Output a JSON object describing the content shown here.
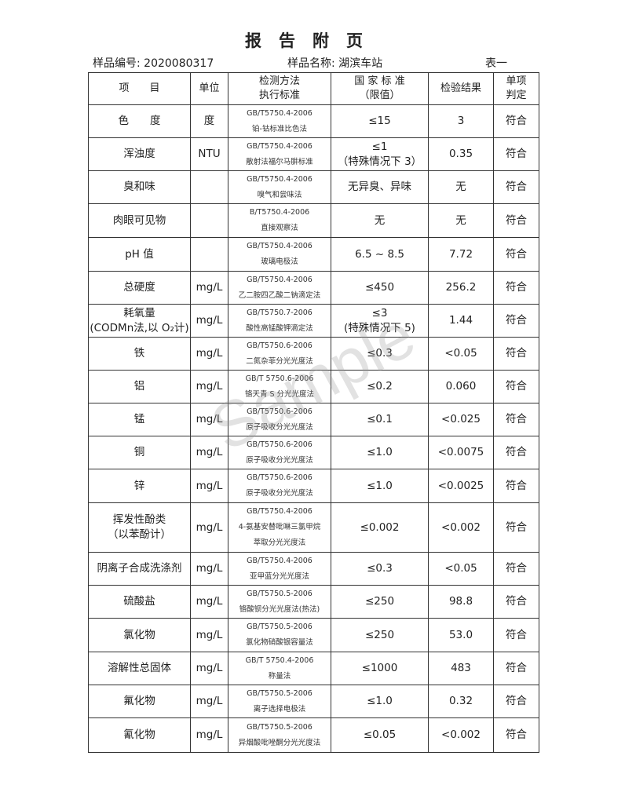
{
  "title": "报告附页",
  "sample_no": "样品编号: 2020080317",
  "sample_name": "样品名称: 湖滨车站",
  "table_no": "表一",
  "watermark": "Sample",
  "headers": [
    "项　　目",
    "单位",
    "检测方法\n执行标准",
    "国 家 标 准\n（限值）",
    "检验结果",
    "单项\n判定"
  ],
  "rows": [
    {
      "item": "色　　度",
      "unit": "度",
      "std": "GB/T5750.4-2006",
      "method": "铂-钴标准比色法",
      "limit": "≤15",
      "result": "3",
      "verdict": "符合"
    },
    {
      "item": "浑浊度",
      "unit": "NTU",
      "std": "GB/T5750.4-2006",
      "method": "散射法福尔马肼标准",
      "limit": "≤1\n（特殊情况下 3）",
      "result": "0.35",
      "verdict": "符合"
    },
    {
      "item": "臭和味",
      "unit": "",
      "std": "GB/T5750.4-2006",
      "method": "嗅气和尝味法",
      "limit": "无异臭、异味",
      "result": "无",
      "verdict": "符合"
    },
    {
      "item": "肉眼可见物",
      "unit": "",
      "std": "B/T5750.4-2006",
      "method": "直接观察法",
      "limit": "无",
      "result": "无",
      "verdict": "符合"
    },
    {
      "item": "pH 值",
      "unit": "",
      "std": "GB/T5750.4-2006",
      "method": "玻璃电极法",
      "limit": "6.5 ~ 8.5",
      "result": "7.72",
      "verdict": "符合"
    },
    {
      "item": "总硬度",
      "unit": "mg/L",
      "std": "GB/T5750.4-2006",
      "method": "乙二胺四乙酸二钠滴定法",
      "limit": "≤450",
      "result": "256.2",
      "verdict": "符合"
    },
    {
      "item": "耗氧量\n(CODMn法,以 O₂计)",
      "unit": "mg/L",
      "std": "GB/T5750.7-2006",
      "method": "酸性高锰酸钾滴定法",
      "limit": "≤3\n(特殊情况下 5)",
      "result": "1.44",
      "verdict": "符合"
    },
    {
      "item": "铁",
      "unit": "mg/L",
      "std": "GB/T5750.6-2006",
      "method": "二氮杂菲分光光度法",
      "limit": "≤0.3",
      "result": "<0.05",
      "verdict": "符合"
    },
    {
      "item": "铝",
      "unit": "mg/L",
      "std": "GB/T 5750.6-2006",
      "method": "铬天青 S 分光光度法",
      "limit": "≤0.2",
      "result": "0.060",
      "verdict": "符合"
    },
    {
      "item": "锰",
      "unit": "mg/L",
      "std": "GB/T5750.6-2006",
      "method": "原子吸收分光光度法",
      "limit": "≤0.1",
      "result": "<0.025",
      "verdict": "符合"
    },
    {
      "item": "铜",
      "unit": "mg/L",
      "std": "GB/T5750.6-2006",
      "method": "原子吸收分光光度法",
      "limit": "≤1.0",
      "result": "<0.0075",
      "verdict": "符合"
    },
    {
      "item": "锌",
      "unit": "mg/L",
      "std": "GB/T5750.6-2006",
      "method": "原子吸收分光光度法",
      "limit": "≤1.0",
      "result": "<0.0025",
      "verdict": "符合"
    },
    {
      "item": "挥发性酚类\n（以苯酚计）",
      "unit": "mg/L",
      "std": "GB/T5750.4-2006",
      "method": "4-氨基安替吡啉三氯甲烷\n萃取分光光度法",
      "limit": "≤0.002",
      "result": "<0.002",
      "verdict": "符合"
    },
    {
      "item": "阴离子合成洗涤剂",
      "unit": "mg/L",
      "std": "GB/T5750.4-2006",
      "method": "亚甲蓝分光光度法",
      "limit": "≤0.3",
      "result": "<0.05",
      "verdict": "符合"
    },
    {
      "item": "硫酸盐",
      "unit": "mg/L",
      "std": "GB/T5750.5-2006",
      "method": "铬酸钡分光光度法(热法)",
      "limit": "≤250",
      "result": "98.8",
      "verdict": "符合"
    },
    {
      "item": "氯化物",
      "unit": "mg/L",
      "std": "GB/T5750.5-2006",
      "method": "氯化物硝酸银容量法",
      "limit": "≤250",
      "result": "53.0",
      "verdict": "符合"
    },
    {
      "item": "溶解性总固体",
      "unit": "mg/L",
      "std": "GB/T 5750.4-2006",
      "method": "称量法",
      "limit": "≤1000",
      "result": "483",
      "verdict": "符合"
    },
    {
      "item": "氟化物",
      "unit": "mg/L",
      "std": "GB/T5750.5-2006",
      "method": "离子选择电极法",
      "limit": "≤1.0",
      "result": "0.32",
      "verdict": "符合"
    },
    {
      "item": "氰化物",
      "unit": "mg/L",
      "std": "GB/T5750.5-2006",
      "method": "异烟酸吡唑酮分光光度法",
      "limit": "≤0.05",
      "result": "<0.002",
      "verdict": "符合"
    }
  ]
}
